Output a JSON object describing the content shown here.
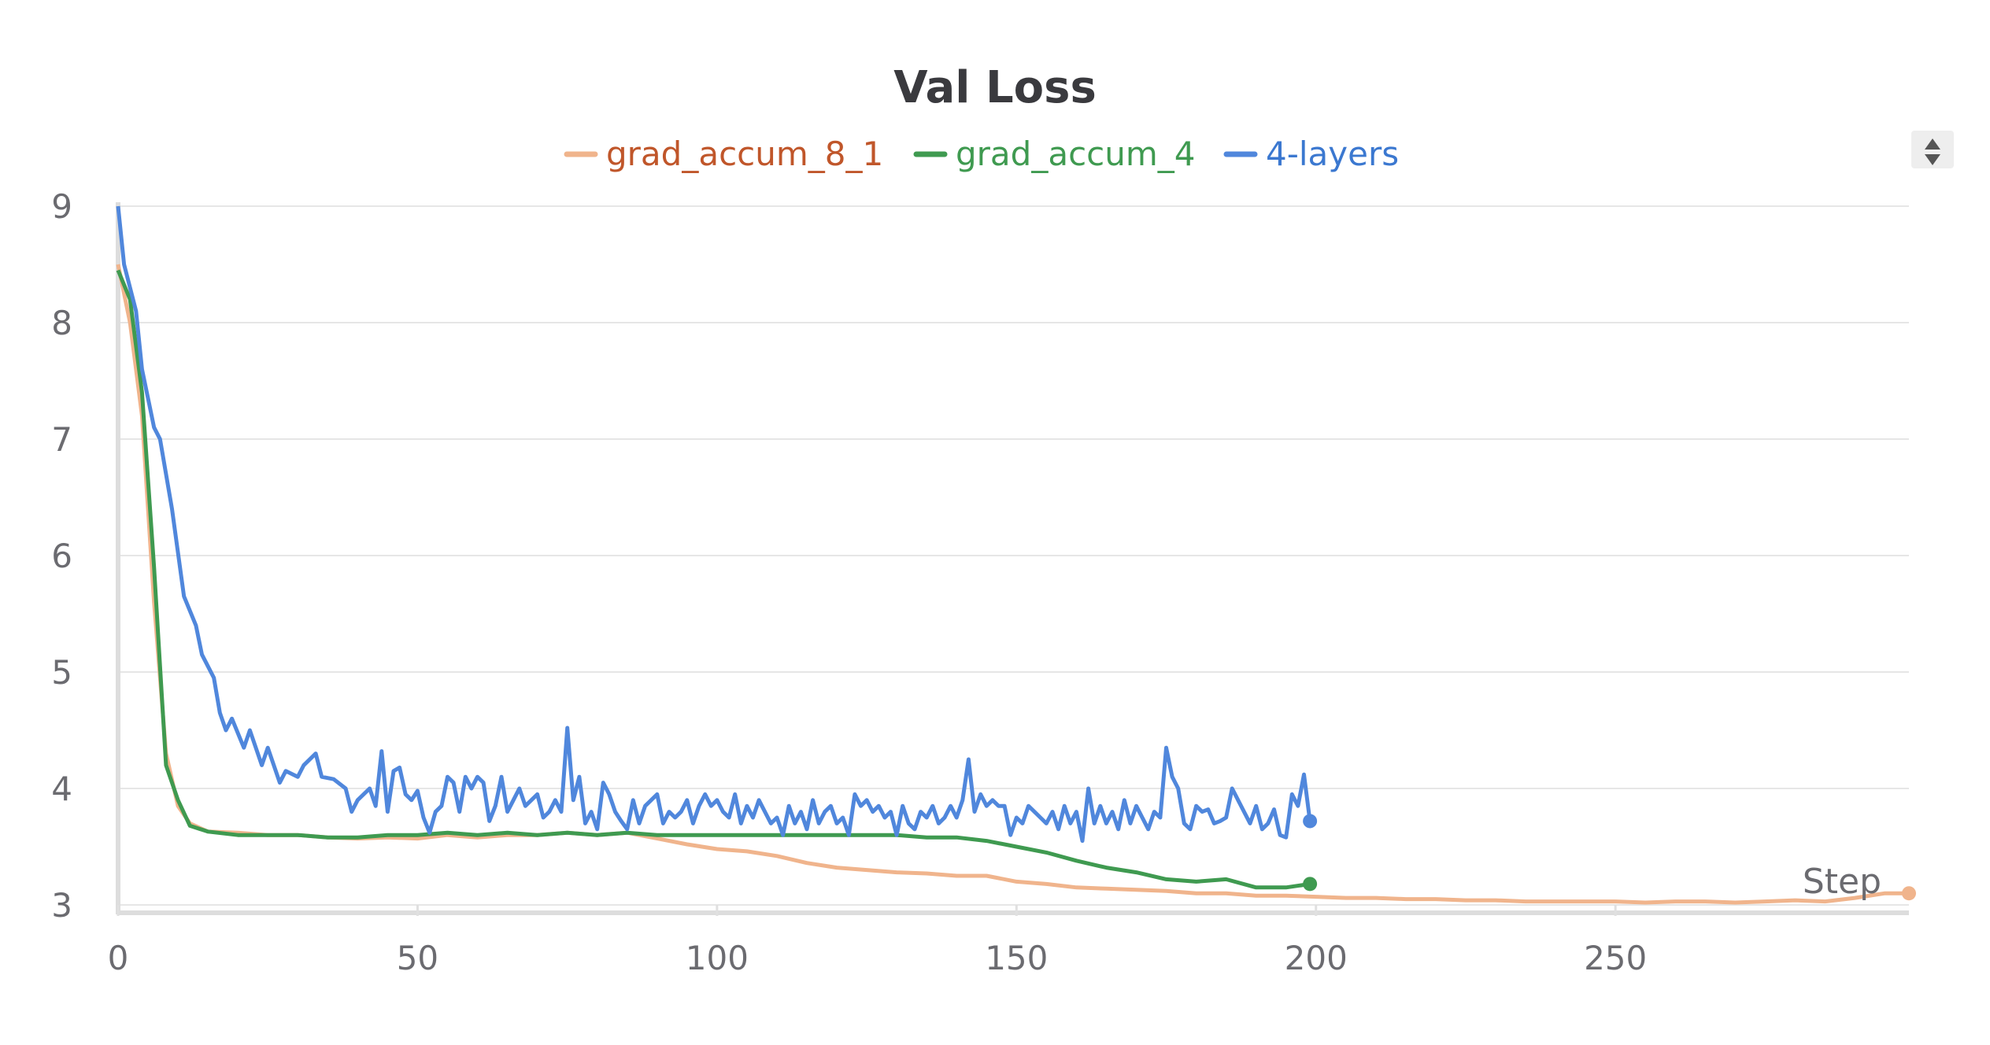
{
  "chart_data": {
    "type": "line",
    "title": "Val Loss",
    "xlabel": "Step",
    "ylabel": "",
    "xlim": [
      0,
      299
    ],
    "ylim": [
      3,
      9
    ],
    "x_ticks": [
      "0",
      "50",
      "100",
      "150",
      "200",
      "250"
    ],
    "y_ticks": [
      "3",
      "4",
      "5",
      "6",
      "7",
      "8",
      "9"
    ],
    "grid": true,
    "legend_position": "top-center",
    "series": [
      {
        "name": "grad_accum_8_1",
        "color": "#f0b48c",
        "text_color": "#c0562a",
        "end_marker": true,
        "points": [
          [
            0,
            8.5
          ],
          [
            2,
            8.0
          ],
          [
            4,
            7.2
          ],
          [
            6,
            5.6
          ],
          [
            8,
            4.3
          ],
          [
            10,
            3.85
          ],
          [
            12,
            3.7
          ],
          [
            15,
            3.63
          ],
          [
            20,
            3.62
          ],
          [
            25,
            3.6
          ],
          [
            30,
            3.6
          ],
          [
            35,
            3.58
          ],
          [
            40,
            3.57
          ],
          [
            45,
            3.58
          ],
          [
            50,
            3.57
          ],
          [
            55,
            3.6
          ],
          [
            60,
            3.58
          ],
          [
            65,
            3.6
          ],
          [
            70,
            3.6
          ],
          [
            75,
            3.62
          ],
          [
            80,
            3.6
          ],
          [
            85,
            3.62
          ],
          [
            90,
            3.57
          ],
          [
            95,
            3.52
          ],
          [
            100,
            3.48
          ],
          [
            105,
            3.46
          ],
          [
            110,
            3.42
          ],
          [
            115,
            3.36
          ],
          [
            120,
            3.32
          ],
          [
            125,
            3.3
          ],
          [
            130,
            3.28
          ],
          [
            135,
            3.27
          ],
          [
            140,
            3.25
          ],
          [
            145,
            3.25
          ],
          [
            150,
            3.2
          ],
          [
            155,
            3.18
          ],
          [
            160,
            3.15
          ],
          [
            165,
            3.14
          ],
          [
            170,
            3.13
          ],
          [
            175,
            3.12
          ],
          [
            180,
            3.1
          ],
          [
            185,
            3.1
          ],
          [
            190,
            3.08
          ],
          [
            195,
            3.08
          ],
          [
            200,
            3.07
          ],
          [
            205,
            3.06
          ],
          [
            210,
            3.06
          ],
          [
            215,
            3.05
          ],
          [
            220,
            3.05
          ],
          [
            225,
            3.04
          ],
          [
            230,
            3.04
          ],
          [
            235,
            3.03
          ],
          [
            240,
            3.03
          ],
          [
            245,
            3.03
          ],
          [
            250,
            3.03
          ],
          [
            255,
            3.02
          ],
          [
            260,
            3.03
          ],
          [
            265,
            3.03
          ],
          [
            270,
            3.02
          ],
          [
            275,
            3.03
          ],
          [
            280,
            3.04
          ],
          [
            285,
            3.03
          ],
          [
            290,
            3.06
          ],
          [
            295,
            3.1
          ],
          [
            299,
            3.1
          ]
        ]
      },
      {
        "name": "grad_accum_4",
        "color": "#3f9a50",
        "text_color": "#3f9a50",
        "end_marker": true,
        "points": [
          [
            0,
            8.45
          ],
          [
            2,
            8.2
          ],
          [
            4,
            7.4
          ],
          [
            6,
            5.9
          ],
          [
            8,
            4.2
          ],
          [
            10,
            3.9
          ],
          [
            12,
            3.68
          ],
          [
            15,
            3.63
          ],
          [
            20,
            3.6
          ],
          [
            25,
            3.6
          ],
          [
            30,
            3.6
          ],
          [
            35,
            3.58
          ],
          [
            40,
            3.58
          ],
          [
            45,
            3.6
          ],
          [
            50,
            3.6
          ],
          [
            55,
            3.62
          ],
          [
            60,
            3.6
          ],
          [
            65,
            3.62
          ],
          [
            70,
            3.6
          ],
          [
            75,
            3.62
          ],
          [
            80,
            3.6
          ],
          [
            85,
            3.62
          ],
          [
            90,
            3.6
          ],
          [
            95,
            3.6
          ],
          [
            100,
            3.6
          ],
          [
            105,
            3.6
          ],
          [
            110,
            3.6
          ],
          [
            115,
            3.6
          ],
          [
            120,
            3.6
          ],
          [
            125,
            3.6
          ],
          [
            130,
            3.6
          ],
          [
            135,
            3.58
          ],
          [
            140,
            3.58
          ],
          [
            145,
            3.55
          ],
          [
            150,
            3.5
          ],
          [
            155,
            3.45
          ],
          [
            160,
            3.38
          ],
          [
            165,
            3.32
          ],
          [
            170,
            3.28
          ],
          [
            175,
            3.22
          ],
          [
            180,
            3.2
          ],
          [
            185,
            3.22
          ],
          [
            190,
            3.15
          ],
          [
            195,
            3.15
          ],
          [
            199,
            3.18
          ]
        ]
      },
      {
        "name": "4-layers",
        "color": "#5087dc",
        "text_color": "#3b78d0",
        "end_marker": true,
        "points": [
          [
            0,
            9.0
          ],
          [
            1,
            8.5
          ],
          [
            3,
            8.1
          ],
          [
            4,
            7.6
          ],
          [
            6,
            7.1
          ],
          [
            7,
            7.0
          ],
          [
            9,
            6.4
          ],
          [
            11,
            5.65
          ],
          [
            13,
            5.4
          ],
          [
            14,
            5.15
          ],
          [
            16,
            4.95
          ],
          [
            17,
            4.65
          ],
          [
            18,
            4.5
          ],
          [
            19,
            4.6
          ],
          [
            21,
            4.35
          ],
          [
            22,
            4.5
          ],
          [
            24,
            4.2
          ],
          [
            25,
            4.35
          ],
          [
            27,
            4.05
          ],
          [
            28,
            4.15
          ],
          [
            30,
            4.1
          ],
          [
            31,
            4.2
          ],
          [
            33,
            4.3
          ],
          [
            34,
            4.1
          ],
          [
            36,
            4.08
          ],
          [
            38,
            4.0
          ],
          [
            39,
            3.8
          ],
          [
            40,
            3.9
          ],
          [
            42,
            4.0
          ],
          [
            43,
            3.85
          ],
          [
            44,
            4.32
          ],
          [
            45,
            3.8
          ],
          [
            46,
            4.15
          ],
          [
            47,
            4.18
          ],
          [
            48,
            3.95
          ],
          [
            49,
            3.9
          ],
          [
            50,
            3.98
          ],
          [
            51,
            3.75
          ],
          [
            52,
            3.62
          ],
          [
            53,
            3.8
          ],
          [
            54,
            3.85
          ],
          [
            55,
            4.1
          ],
          [
            56,
            4.05
          ],
          [
            57,
            3.8
          ],
          [
            58,
            4.1
          ],
          [
            59,
            4.0
          ],
          [
            60,
            4.1
          ],
          [
            61,
            4.05
          ],
          [
            62,
            3.72
          ],
          [
            63,
            3.85
          ],
          [
            64,
            4.1
          ],
          [
            65,
            3.8
          ],
          [
            66,
            3.9
          ],
          [
            67,
            4.0
          ],
          [
            68,
            3.85
          ],
          [
            69,
            3.9
          ],
          [
            70,
            3.95
          ],
          [
            71,
            3.75
          ],
          [
            72,
            3.8
          ],
          [
            73,
            3.9
          ],
          [
            74,
            3.8
          ],
          [
            75,
            4.52
          ],
          [
            76,
            3.9
          ],
          [
            77,
            4.1
          ],
          [
            78,
            3.7
          ],
          [
            79,
            3.8
          ],
          [
            80,
            3.65
          ],
          [
            81,
            4.05
          ],
          [
            82,
            3.95
          ],
          [
            83,
            3.8
          ],
          [
            84,
            3.72
          ],
          [
            85,
            3.65
          ],
          [
            86,
            3.9
          ],
          [
            87,
            3.7
          ],
          [
            88,
            3.85
          ],
          [
            89,
            3.9
          ],
          [
            90,
            3.95
          ],
          [
            91,
            3.7
          ],
          [
            92,
            3.8
          ],
          [
            93,
            3.75
          ],
          [
            94,
            3.8
          ],
          [
            95,
            3.9
          ],
          [
            96,
            3.7
          ],
          [
            97,
            3.85
          ],
          [
            98,
            3.95
          ],
          [
            99,
            3.85
          ],
          [
            100,
            3.9
          ],
          [
            101,
            3.8
          ],
          [
            102,
            3.75
          ],
          [
            103,
            3.95
          ],
          [
            104,
            3.7
          ],
          [
            105,
            3.85
          ],
          [
            106,
            3.75
          ],
          [
            107,
            3.9
          ],
          [
            108,
            3.8
          ],
          [
            109,
            3.7
          ],
          [
            110,
            3.75
          ],
          [
            111,
            3.6
          ],
          [
            112,
            3.85
          ],
          [
            113,
            3.7
          ],
          [
            114,
            3.8
          ],
          [
            115,
            3.65
          ],
          [
            116,
            3.9
          ],
          [
            117,
            3.7
          ],
          [
            118,
            3.8
          ],
          [
            119,
            3.85
          ],
          [
            120,
            3.7
          ],
          [
            121,
            3.75
          ],
          [
            122,
            3.6
          ],
          [
            123,
            3.95
          ],
          [
            124,
            3.85
          ],
          [
            125,
            3.9
          ],
          [
            126,
            3.8
          ],
          [
            127,
            3.85
          ],
          [
            128,
            3.75
          ],
          [
            129,
            3.8
          ],
          [
            130,
            3.6
          ],
          [
            131,
            3.85
          ],
          [
            132,
            3.7
          ],
          [
            133,
            3.65
          ],
          [
            134,
            3.8
          ],
          [
            135,
            3.75
          ],
          [
            136,
            3.85
          ],
          [
            137,
            3.7
          ],
          [
            138,
            3.75
          ],
          [
            139,
            3.85
          ],
          [
            140,
            3.75
          ],
          [
            141,
            3.9
          ],
          [
            142,
            4.25
          ],
          [
            143,
            3.8
          ],
          [
            144,
            3.95
          ],
          [
            145,
            3.85
          ],
          [
            146,
            3.9
          ],
          [
            147,
            3.85
          ],
          [
            148,
            3.85
          ],
          [
            149,
            3.6
          ],
          [
            150,
            3.75
          ],
          [
            151,
            3.7
          ],
          [
            152,
            3.85
          ],
          [
            153,
            3.8
          ],
          [
            154,
            3.75
          ],
          [
            155,
            3.7
          ],
          [
            156,
            3.8
          ],
          [
            157,
            3.65
          ],
          [
            158,
            3.85
          ],
          [
            159,
            3.7
          ],
          [
            160,
            3.8
          ],
          [
            161,
            3.55
          ],
          [
            162,
            4.0
          ],
          [
            163,
            3.7
          ],
          [
            164,
            3.85
          ],
          [
            165,
            3.7
          ],
          [
            166,
            3.8
          ],
          [
            167,
            3.65
          ],
          [
            168,
            3.9
          ],
          [
            169,
            3.7
          ],
          [
            170,
            3.85
          ],
          [
            171,
            3.75
          ],
          [
            172,
            3.65
          ],
          [
            173,
            3.8
          ],
          [
            174,
            3.75
          ],
          [
            175,
            4.35
          ],
          [
            176,
            4.1
          ],
          [
            177,
            4.0
          ],
          [
            178,
            3.7
          ],
          [
            179,
            3.65
          ],
          [
            180,
            3.85
          ],
          [
            181,
            3.8
          ],
          [
            182,
            3.82
          ],
          [
            183,
            3.7
          ],
          [
            184,
            3.72
          ],
          [
            185,
            3.75
          ],
          [
            186,
            4.0
          ],
          [
            187,
            3.9
          ],
          [
            188,
            3.8
          ],
          [
            189,
            3.7
          ],
          [
            190,
            3.85
          ],
          [
            191,
            3.65
          ],
          [
            192,
            3.7
          ],
          [
            193,
            3.82
          ],
          [
            194,
            3.6
          ],
          [
            195,
            3.58
          ],
          [
            196,
            3.95
          ],
          [
            197,
            3.85
          ],
          [
            198,
            4.12
          ],
          [
            199,
            3.72
          ]
        ]
      }
    ]
  }
}
